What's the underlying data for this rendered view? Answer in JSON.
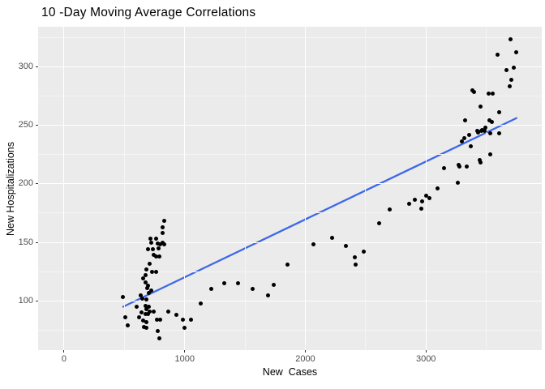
{
  "title": "10 -Day Moving Average Correlations",
  "colors": {
    "background": "#FFFFFF",
    "panel_bg": "#EBEBEB",
    "grid_major": "#FFFFFF",
    "grid_minor": "#F5F5F5",
    "point": "#000000",
    "trend_line": "#3E68E8",
    "tick_label": "#4D4D4D",
    "axis_title": "#000000",
    "tick_mark": "#333333"
  },
  "chart_data": {
    "type": "scatter",
    "title": "10 -Day Moving Average Correlations",
    "xlabel": "New  Cases",
    "ylabel": "New Hospitalizations",
    "x_ticks": [
      0,
      1000,
      2000,
      3000
    ],
    "y_ticks": [
      100,
      150,
      200,
      250,
      300
    ],
    "x_minor_ticks": [
      500,
      1500,
      2500,
      3500
    ],
    "y_minor_ticks": [
      75,
      125,
      175,
      225,
      275,
      325
    ],
    "xlim": [
      -215,
      3960
    ],
    "ylim": [
      58,
      334
    ],
    "grid": "major and minor white gridlines on gray panel (ggplot style)",
    "legend": "none",
    "trend_line": {
      "type": "linear fit",
      "x": [
        490,
        3750
      ],
      "y": [
        95,
        256
      ],
      "color": "#3E68E8",
      "equation_approx": "y = 70.4 + 0.0496x"
    },
    "points": [
      [
        830,
        168
      ],
      [
        820,
        163
      ],
      [
        815,
        158
      ],
      [
        715,
        153
      ],
      [
        760,
        153
      ],
      [
        725,
        150
      ],
      [
        775,
        149
      ],
      [
        800,
        148
      ],
      [
        820,
        150
      ],
      [
        830,
        148
      ],
      [
        695,
        144
      ],
      [
        735,
        144
      ],
      [
        785,
        145
      ],
      [
        740,
        139
      ],
      [
        765,
        138
      ],
      [
        790,
        138
      ],
      [
        710,
        132
      ],
      [
        685,
        127
      ],
      [
        730,
        125
      ],
      [
        760,
        125
      ],
      [
        675,
        122
      ],
      [
        655,
        119
      ],
      [
        675,
        116
      ],
      [
        695,
        113
      ],
      [
        690,
        111
      ],
      [
        720,
        109
      ],
      [
        635,
        105
      ],
      [
        650,
        102
      ],
      [
        680,
        101
      ],
      [
        700,
        107
      ],
      [
        490,
        103
      ],
      [
        605,
        95
      ],
      [
        645,
        90
      ],
      [
        675,
        96
      ],
      [
        685,
        93
      ],
      [
        700,
        95
      ],
      [
        625,
        86
      ],
      [
        675,
        89
      ],
      [
        695,
        89
      ],
      [
        710,
        91
      ],
      [
        745,
        91
      ],
      [
        510,
        86
      ],
      [
        530,
        79
      ],
      [
        655,
        83
      ],
      [
        665,
        78
      ],
      [
        680,
        82
      ],
      [
        680,
        77
      ],
      [
        770,
        84
      ],
      [
        800,
        84
      ],
      [
        780,
        74
      ],
      [
        790,
        68
      ],
      [
        865,
        91
      ],
      [
        930,
        88
      ],
      [
        985,
        84
      ],
      [
        1000,
        77
      ],
      [
        1055,
        84
      ],
      [
        1130,
        98
      ],
      [
        1220,
        110
      ],
      [
        1330,
        115
      ],
      [
        1445,
        115
      ],
      [
        1560,
        110
      ],
      [
        1690,
        105
      ],
      [
        1740,
        114
      ],
      [
        1855,
        131
      ],
      [
        2065,
        148
      ],
      [
        2225,
        154
      ],
      [
        2335,
        147
      ],
      [
        2410,
        137
      ],
      [
        2420,
        131
      ],
      [
        2485,
        142
      ],
      [
        2615,
        166
      ],
      [
        2700,
        178
      ],
      [
        2860,
        183
      ],
      [
        2910,
        186
      ],
      [
        2965,
        185
      ],
      [
        2960,
        179
      ],
      [
        3005,
        190
      ],
      [
        3030,
        188
      ],
      [
        3095,
        196
      ],
      [
        3150,
        213
      ],
      [
        3265,
        201
      ],
      [
        3270,
        216
      ],
      [
        3275,
        215
      ],
      [
        3340,
        215
      ],
      [
        3450,
        218
      ],
      [
        3300,
        236
      ],
      [
        3315,
        239
      ],
      [
        3325,
        254
      ],
      [
        3355,
        242
      ],
      [
        3370,
        232
      ],
      [
        3385,
        280
      ],
      [
        3400,
        278
      ],
      [
        3425,
        245
      ],
      [
        3435,
        244
      ],
      [
        3450,
        266
      ],
      [
        3460,
        245
      ],
      [
        3465,
        246
      ],
      [
        3485,
        245
      ],
      [
        3495,
        248
      ],
      [
        3520,
        277
      ],
      [
        3550,
        277
      ],
      [
        3525,
        254
      ],
      [
        3545,
        253
      ],
      [
        3530,
        243
      ],
      [
        3610,
        243
      ],
      [
        3610,
        261
      ],
      [
        3595,
        310
      ],
      [
        3665,
        297
      ],
      [
        3700,
        323
      ],
      [
        3730,
        299
      ],
      [
        3745,
        312
      ],
      [
        3710,
        289
      ],
      [
        3695,
        283
      ],
      [
        3535,
        225
      ],
      [
        3445,
        220
      ]
    ]
  }
}
